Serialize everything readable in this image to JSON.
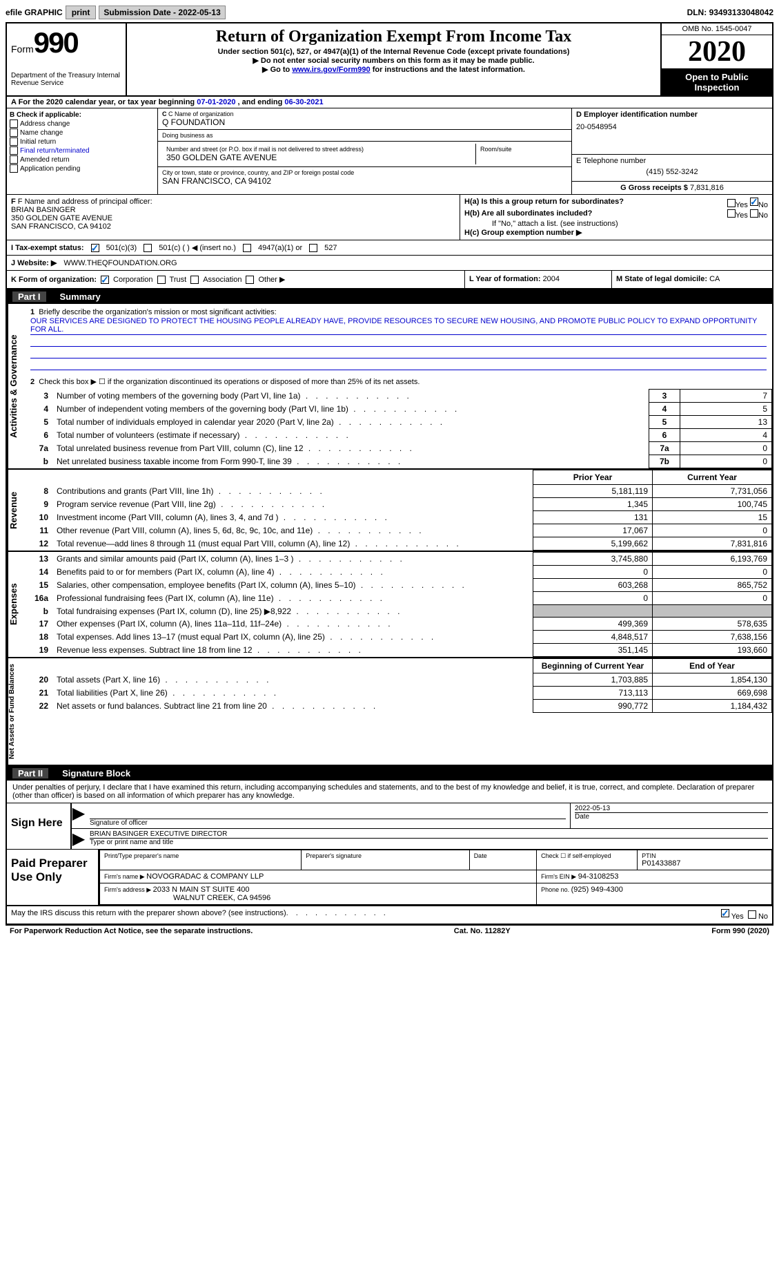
{
  "topbar": {
    "efile": "efile GRAPHIC",
    "print": "print",
    "sub_label": "Submission Date - ",
    "sub_date": "2022-05-13",
    "dln_label": "DLN: ",
    "dln": "93493133048042"
  },
  "header": {
    "form_label": "Form",
    "form_num": "990",
    "dept": "Department of the Treasury\nInternal Revenue Service",
    "title": "Return of Organization Exempt From Income Tax",
    "subtitle": "Under section 501(c), 527, or 4947(a)(1) of the Internal Revenue Code (except private foundations)",
    "note1": "▶ Do not enter social security numbers on this form as it may be made public.",
    "note2_pre": "▶ Go to ",
    "note2_link": "www.irs.gov/Form990",
    "note2_post": " for instructions and the latest information.",
    "omb": "OMB No. 1545-0047",
    "year": "2020",
    "open": "Open to Public Inspection"
  },
  "taxyear": {
    "label_a": "A For the 2020 calendar year, or tax year beginning ",
    "begin": "07-01-2020",
    "mid": " , and ending ",
    "end": "06-30-2021"
  },
  "boxB": {
    "label": "B Check if applicable:",
    "opts": [
      "Address change",
      "Name change",
      "Initial return",
      "Final return/terminated",
      "Amended return",
      "Application pending"
    ]
  },
  "boxC": {
    "name_label": "C Name of organization",
    "name": "Q FOUNDATION",
    "dba_label": "Doing business as",
    "dba": "",
    "addr_label": "Number and street (or P.O. box if mail is not delivered to street address)",
    "room_label": "Room/suite",
    "addr": "350 GOLDEN GATE AVENUE",
    "city_label": "City or town, state or province, country, and ZIP or foreign postal code",
    "city": "SAN FRANCISCO, CA  94102"
  },
  "boxD": {
    "label": "D Employer identification number",
    "ein": "20-0548954"
  },
  "boxE": {
    "label": "E Telephone number",
    "phone": "(415) 552-3242"
  },
  "boxG": {
    "label": "G Gross receipts $ ",
    "val": "7,831,816"
  },
  "boxF": {
    "label": "F Name and address of principal officer:",
    "name": "BRIAN BASINGER",
    "addr1": "350 GOLDEN GATE AVENUE",
    "addr2": "SAN FRANCISCO, CA  94102"
  },
  "boxH": {
    "a_label": "H(a)  Is this a group return for subordinates?",
    "b_label": "H(b)  Are all subordinates included?",
    "b_note": "If \"No,\" attach a list. (see instructions)",
    "c_label": "H(c)  Group exemption number ▶",
    "yes": "Yes",
    "no": "No",
    "a_answer": "No"
  },
  "boxI": {
    "label": "I    Tax-exempt status:",
    "opts": [
      "501(c)(3)",
      "501(c) (   ) ◀ (insert no.)",
      "4947(a)(1) or",
      "527"
    ],
    "checked": 0
  },
  "boxJ": {
    "label": "J   Website: ▶ ",
    "val": "WWW.THEQFOUNDATION.ORG"
  },
  "boxK": {
    "label": "K Form of organization:",
    "opts": [
      "Corporation",
      "Trust",
      "Association",
      "Other ▶"
    ],
    "checked": 0
  },
  "boxL": {
    "label": "L Year of formation: ",
    "val": "2004"
  },
  "boxM": {
    "label": "M State of legal domicile: ",
    "val": "CA"
  },
  "part1": {
    "label": "Part I",
    "title": "Summary"
  },
  "mission": {
    "num": "1",
    "label": "Briefly describe the organization's mission or most significant activities:",
    "text": "OUR SERVICES ARE DESIGNED TO PROTECT THE HOUSING PEOPLE ALREADY HAVE, PROVIDE RESOURCES TO SECURE NEW HOUSING, AND PROMOTE PUBLIC POLICY TO EXPAND OPPORTUNITY FOR ALL."
  },
  "gov": {
    "line2": "Check this box ▶ ☐  if the organization discontinued its operations or disposed of more than 25% of its net assets.",
    "rows": [
      {
        "num": "3",
        "label": "Number of voting members of the governing body (Part VI, line 1a)",
        "box": "3",
        "val": "7"
      },
      {
        "num": "4",
        "label": "Number of independent voting members of the governing body (Part VI, line 1b)",
        "box": "4",
        "val": "5"
      },
      {
        "num": "5",
        "label": "Total number of individuals employed in calendar year 2020 (Part V, line 2a)",
        "box": "5",
        "val": "13"
      },
      {
        "num": "6",
        "label": "Total number of volunteers (estimate if necessary)",
        "box": "6",
        "val": "4"
      },
      {
        "num": "7a",
        "label": "Total unrelated business revenue from Part VIII, column (C), line 12",
        "box": "7a",
        "val": "0"
      },
      {
        "num": "b",
        "label": "Net unrelated business taxable income from Form 990-T, line 39",
        "box": "7b",
        "val": "0"
      }
    ]
  },
  "fin_headers": {
    "prior": "Prior Year",
    "current": "Current Year",
    "beg": "Beginning of Current Year",
    "end": "End of Year"
  },
  "revenue": [
    {
      "num": "8",
      "label": "Contributions and grants (Part VIII, line 1h)",
      "prior": "5,181,119",
      "current": "7,731,056"
    },
    {
      "num": "9",
      "label": "Program service revenue (Part VIII, line 2g)",
      "prior": "1,345",
      "current": "100,745"
    },
    {
      "num": "10",
      "label": "Investment income (Part VIII, column (A), lines 3, 4, and 7d )",
      "prior": "131",
      "current": "15"
    },
    {
      "num": "11",
      "label": "Other revenue (Part VIII, column (A), lines 5, 6d, 8c, 9c, 10c, and 11e)",
      "prior": "17,067",
      "current": "0"
    },
    {
      "num": "12",
      "label": "Total revenue—add lines 8 through 11 (must equal Part VIII, column (A), line 12)",
      "prior": "5,199,662",
      "current": "7,831,816"
    }
  ],
  "expenses": [
    {
      "num": "13",
      "label": "Grants and similar amounts paid (Part IX, column (A), lines 1–3 )",
      "prior": "3,745,880",
      "current": "6,193,769"
    },
    {
      "num": "14",
      "label": "Benefits paid to or for members (Part IX, column (A), line 4)",
      "prior": "0",
      "current": "0"
    },
    {
      "num": "15",
      "label": "Salaries, other compensation, employee benefits (Part IX, column (A), lines 5–10)",
      "prior": "603,268",
      "current": "865,752"
    },
    {
      "num": "16a",
      "label": "Professional fundraising fees (Part IX, column (A), line 11e)",
      "prior": "0",
      "current": "0"
    },
    {
      "num": "b",
      "label": "Total fundraising expenses (Part IX, column (D), line 25) ▶8,922",
      "prior": "",
      "current": "",
      "shaded": true
    },
    {
      "num": "17",
      "label": "Other expenses (Part IX, column (A), lines 11a–11d, 11f–24e)",
      "prior": "499,369",
      "current": "578,635"
    },
    {
      "num": "18",
      "label": "Total expenses. Add lines 13–17 (must equal Part IX, column (A), line 25)",
      "prior": "4,848,517",
      "current": "7,638,156"
    },
    {
      "num": "19",
      "label": "Revenue less expenses. Subtract line 18 from line 12",
      "prior": "351,145",
      "current": "193,660"
    }
  ],
  "netassets": [
    {
      "num": "20",
      "label": "Total assets (Part X, line 16)",
      "prior": "1,703,885",
      "current": "1,854,130"
    },
    {
      "num": "21",
      "label": "Total liabilities (Part X, line 26)",
      "prior": "713,113",
      "current": "669,698"
    },
    {
      "num": "22",
      "label": "Net assets or fund balances. Subtract line 21 from line 20",
      "prior": "990,772",
      "current": "1,184,432"
    }
  ],
  "side_labels": {
    "gov": "Activities & Governance",
    "rev": "Revenue",
    "exp": "Expenses",
    "net": "Net Assets or Fund Balances"
  },
  "part2": {
    "label": "Part II",
    "title": "Signature Block"
  },
  "sig": {
    "decl": "Under penalties of perjury, I declare that I have examined this return, including accompanying schedules and statements, and to the best of my knowledge and belief, it is true, correct, and complete. Declaration of preparer (other than officer) is based on all information of which preparer has any knowledge.",
    "sign_here": "Sign Here",
    "sig_officer": "Signature of officer",
    "date_label": "Date",
    "date": "2022-05-13",
    "name": "BRIAN BASINGER  EXECUTIVE DIRECTOR",
    "name_label": "Type or print name and title"
  },
  "prep": {
    "label": "Paid Preparer Use Only",
    "print_name_label": "Print/Type preparer's name",
    "sig_label": "Preparer's signature",
    "date_label": "Date",
    "check_label": "Check ☐ if self-employed",
    "ptin_label": "PTIN",
    "ptin": "P01433887",
    "firm_name_label": "Firm's name   ▶ ",
    "firm_name": "NOVOGRADAC & COMPANY LLP",
    "firm_ein_label": "Firm's EIN ▶ ",
    "firm_ein": "94-3108253",
    "firm_addr_label": "Firm's address ▶ ",
    "firm_addr": "2033 N MAIN ST SUITE 400",
    "firm_city": "WALNUT CREEK, CA  94596",
    "phone_label": "Phone no. ",
    "phone": "(925) 949-4300"
  },
  "footer": {
    "irs_discuss": "May the IRS discuss this return with the preparer shown above? (see instructions)",
    "yes": "Yes",
    "no": "No",
    "discuss_answer": "Yes",
    "pra": "For Paperwork Reduction Act Notice, see the separate instructions.",
    "cat": "Cat. No. 11282Y",
    "form": "Form 990 (2020)"
  }
}
